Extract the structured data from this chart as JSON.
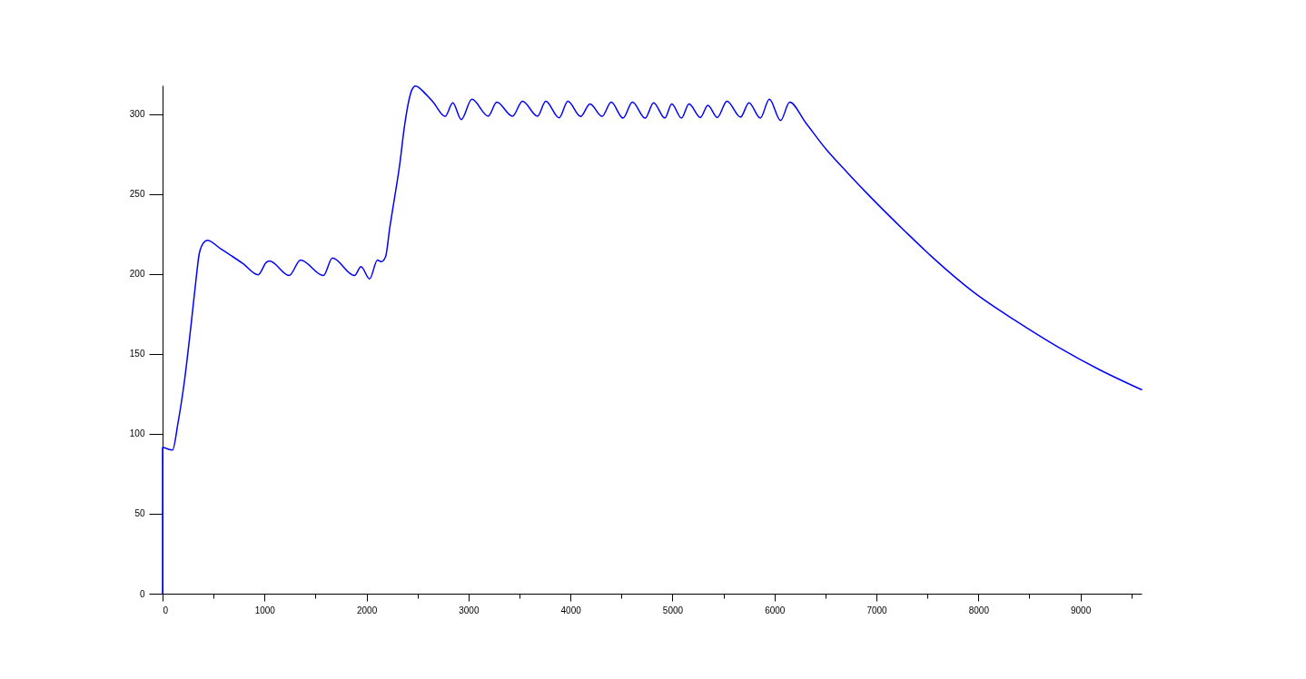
{
  "chart_data": {
    "type": "line",
    "x": [
      0,
      0,
      97,
      151,
      215,
      279,
      328,
      360,
      407,
      439,
      568,
      792,
      937,
      1019,
      1049,
      1241,
      1353,
      1577,
      1665,
      1882,
      1946,
      2030,
      2107,
      2145,
      2187,
      2228,
      2266,
      2326,
      2370,
      2415,
      2444,
      2480,
      2578,
      2653,
      2771,
      2846,
      2929,
      3033,
      3193,
      3277,
      3431,
      3529,
      3677,
      3757,
      3888,
      3974,
      4099,
      4191,
      4310,
      4399,
      4515,
      4607,
      4732,
      4815,
      4925,
      4993,
      5088,
      5162,
      5273,
      5347,
      5439,
      5534,
      5667,
      5750,
      5861,
      5950,
      6060,
      6149,
      6303,
      6509,
      6715,
      6921,
      7293,
      7541,
      7953,
      8366,
      8778,
      9191,
      9600
    ],
    "series": [
      {
        "color": "#0000ff",
        "values": [
          0,
          91.4,
          89.8,
          106.7,
          133.3,
          167.9,
          196.5,
          212.8,
          219.9,
          221,
          215.8,
          206.3,
          199.5,
          207.4,
          208.1,
          199,
          208.7,
          199,
          209.9,
          199,
          204.6,
          196.9,
          208.7,
          207.7,
          210.8,
          229,
          244.2,
          268.8,
          291.5,
          308.5,
          315.1,
          317.6,
          312.7,
          307.5,
          298.6,
          307,
          296.6,
          309.3,
          298.7,
          307.5,
          298.7,
          308.1,
          298.7,
          308,
          297.7,
          308,
          298.5,
          306.4,
          298.6,
          307.5,
          297.5,
          307.5,
          297.5,
          307.1,
          297.5,
          306.4,
          297.5,
          306.4,
          297.9,
          305.5,
          297.9,
          308.1,
          298.1,
          307.1,
          297.5,
          309.4,
          296,
          307.5,
          294.9,
          277.8,
          263.4,
          249.5,
          225.9,
          210.9,
          188.6,
          170.7,
          154.4,
          140,
          127.6
        ]
      }
    ],
    "xlim": [
      0,
      9600
    ],
    "ylim": [
      0,
      318
    ],
    "xticks": [
      0,
      {
        "value": 500,
        "label": null
      },
      1000,
      {
        "value": 1500,
        "label": null
      },
      2000,
      {
        "value": 2500,
        "label": null
      },
      3000,
      {
        "value": 3500,
        "label": null
      },
      4000,
      {
        "value": 4500,
        "label": null
      },
      5000,
      {
        "value": 5500,
        "label": null
      },
      6000,
      {
        "value": 6500,
        "label": null
      },
      7000,
      {
        "value": 7500,
        "label": null
      },
      8000,
      {
        "value": 8500,
        "label": null
      },
      9000,
      {
        "value": 9500,
        "label": null
      }
    ],
    "yticks": [
      0,
      50,
      100,
      150,
      200,
      250,
      300
    ],
    "grid": false,
    "legend": false,
    "marker": "none",
    "line_style": "solid"
  }
}
